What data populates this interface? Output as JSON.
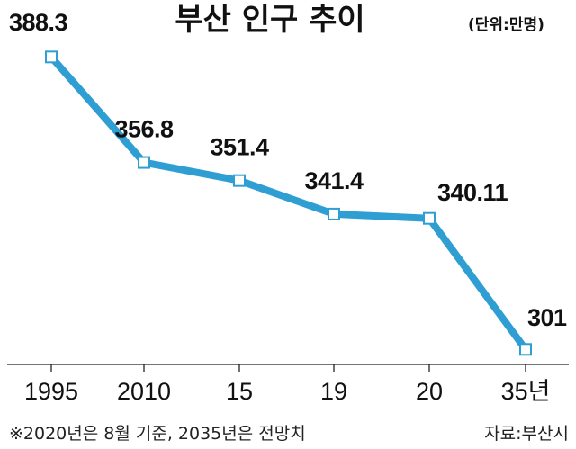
{
  "chart_data": {
    "type": "line",
    "title": "부산 인구 추이",
    "unit_label": "(단위:만명)",
    "categories": [
      "1995",
      "2010",
      "15",
      "19",
      "20",
      "35년"
    ],
    "series": [
      {
        "values": [
          388.3,
          356.8,
          351.4,
          341.4,
          340.11,
          301
        ]
      }
    ],
    "data_labels": [
      "388.3",
      "356.8",
      "351.4",
      "341.4",
      "340.11",
      "301"
    ],
    "ylim": [
      300,
      390
    ],
    "grid": false,
    "line_color": "#2f9fd3",
    "marker_fill": "#ffffff",
    "marker_stroke": "#2f9fd3",
    "footnote": "※2020년은 8월 기준, 2035년은 전망치",
    "source": "자료:부산시"
  }
}
